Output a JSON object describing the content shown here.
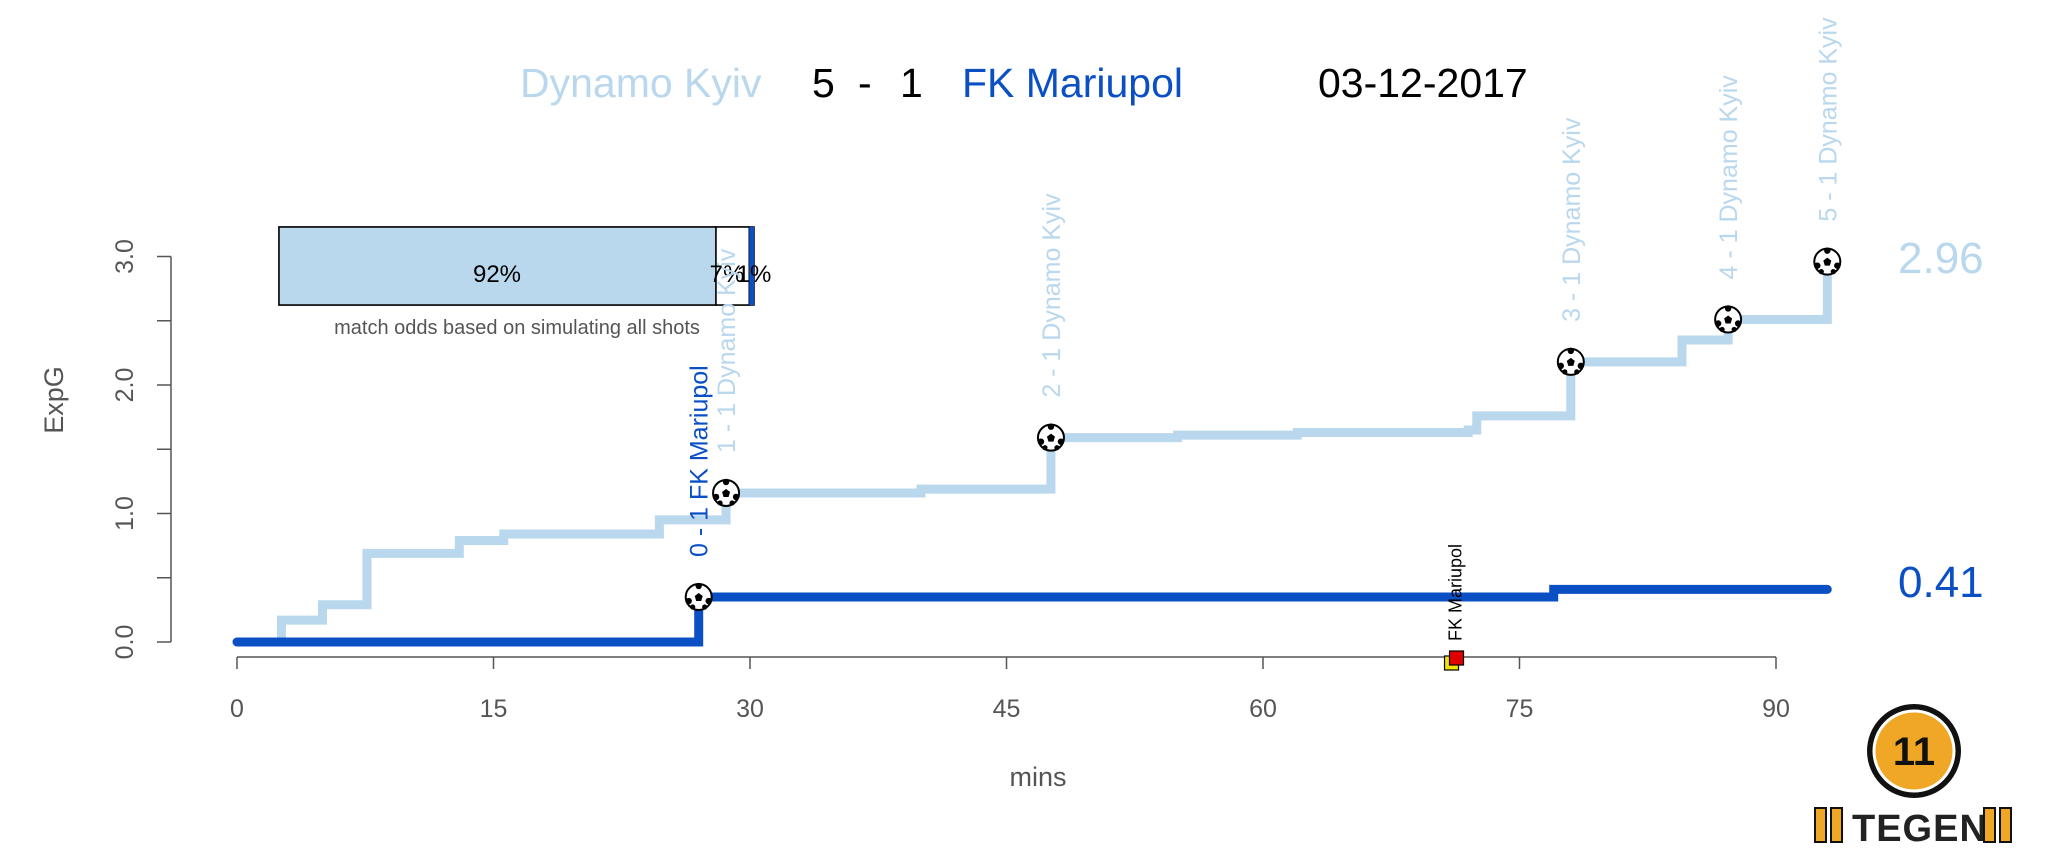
{
  "header": {
    "home_team": "Dynamo Kyiv",
    "score_home": "5",
    "score_sep": "-",
    "score_away": "1",
    "away_team": "FK Mariupol",
    "date": "03-12-2017"
  },
  "colors": {
    "home": "#b9d7ed",
    "away": "#0b4fc4",
    "axis": "#555555",
    "card_red": "#e00000",
    "card_yellow": "#f2e200"
  },
  "odds_box": {
    "home_win": "92%",
    "draw": "7%",
    "away_win": "1%",
    "home_win_value": 0.92,
    "draw_value": 0.07,
    "away_win_value": 0.01,
    "caption": "match odds based on simulating all shots"
  },
  "chart_data": {
    "type": "line",
    "xlabel": "mins",
    "ylabel": "ExpG",
    "xlim": [
      0,
      93
    ],
    "ylim": [
      0,
      3
    ],
    "x_ticks": [
      "0",
      "15",
      "30",
      "45",
      "60",
      "75",
      "90"
    ],
    "y_ticks": [
      "0.0",
      "1.0",
      "2.0",
      "3.0"
    ],
    "y_minor_ticks": [
      0.5,
      1.5,
      2.5
    ],
    "series": [
      {
        "team": "home",
        "final_label": "2.96",
        "steps": [
          [
            0,
            0
          ],
          [
            2.6,
            0.17
          ],
          [
            5,
            0.29
          ],
          [
            7.6,
            0.69
          ],
          [
            13,
            0.79
          ],
          [
            15.6,
            0.84
          ],
          [
            24.7,
            0.95
          ],
          [
            28.6,
            0.99
          ],
          [
            28.6,
            1.16
          ],
          [
            40,
            1.19
          ],
          [
            47.6,
            1.19
          ],
          [
            47.6,
            1.59
          ],
          [
            55,
            1.61
          ],
          [
            62,
            1.63
          ],
          [
            72,
            1.65
          ],
          [
            72.5,
            1.76
          ],
          [
            78,
            1.76
          ],
          [
            78,
            2.18
          ],
          [
            84.5,
            2.35
          ],
          [
            87.2,
            2.35
          ],
          [
            87.2,
            2.51
          ],
          [
            93,
            2.56
          ],
          [
            93,
            2.96
          ]
        ]
      },
      {
        "team": "away",
        "final_label": "0.41",
        "steps": [
          [
            0,
            0
          ],
          [
            27,
            0
          ],
          [
            27,
            0.35
          ],
          [
            77,
            0.35
          ],
          [
            77,
            0.41
          ],
          [
            93,
            0.41
          ]
        ]
      }
    ],
    "goals": [
      {
        "minute": 27,
        "xg": 0.35,
        "team": "away",
        "label": "0 - 1 FK Mariupol"
      },
      {
        "minute": 28.6,
        "xg": 1.16,
        "team": "home",
        "label": "1 - 1 Dynamo Kyiv"
      },
      {
        "minute": 47.6,
        "xg": 1.59,
        "team": "home",
        "label": "2 - 1 Dynamo Kyiv"
      },
      {
        "minute": 78,
        "xg": 2.18,
        "team": "home",
        "label": "3 - 1 Dynamo Kyiv"
      },
      {
        "minute": 87.2,
        "xg": 2.51,
        "team": "home",
        "label": "4 - 1 Dynamo Kyiv"
      },
      {
        "minute": 93,
        "xg": 2.96,
        "team": "home",
        "label": "5 - 1 Dynamo Kyiv"
      }
    ],
    "cards": [
      {
        "minute": 71.2,
        "type": "second-yellow",
        "team": "away",
        "label": "FK Mariupol"
      }
    ]
  },
  "logo": {
    "text": "TEGEN",
    "badge_text": "11"
  }
}
